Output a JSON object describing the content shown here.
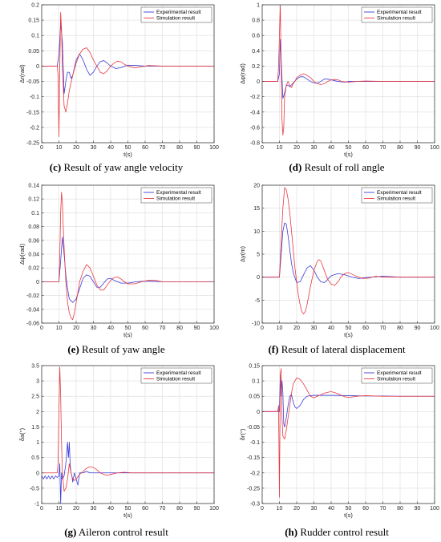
{
  "captions": [
    {
      "letter": "(c)",
      "text": " Result of yaw angle velocity"
    },
    {
      "letter": "(d)",
      "text": " Result of roll angle"
    },
    {
      "letter": "(e)",
      "text": " Result of yaw angle"
    },
    {
      "letter": "(f)",
      "text": " Result of lateral displacement"
    },
    {
      "letter": "(g)",
      "text": " Aileron control result"
    },
    {
      "letter": "(h)",
      "text": " Rudder control result"
    }
  ],
  "colors": {
    "experimental": "#3b3bd9",
    "simulation": "#e8393f",
    "grid": "#dcdcdc",
    "axis": "#262626"
  },
  "chart_data": [
    {
      "type": "line",
      "ylabel": "Δr(rad)",
      "xlabel": "t(s)",
      "xlim": [
        0,
        100
      ],
      "ylim": [
        -0.25,
        0.2
      ],
      "xticks": [
        0,
        10,
        20,
        30,
        40,
        50,
        60,
        70,
        80,
        90,
        100
      ],
      "yticks": [
        -0.25,
        -0.2,
        -0.15,
        -0.1,
        -0.05,
        0,
        0.05,
        0.1,
        0.15,
        0.2
      ],
      "grid": true,
      "legend": "top-right",
      "series": [
        {
          "name": "Experimental result",
          "x": [
            0,
            9,
            10,
            11,
            12,
            13,
            14,
            15,
            16,
            17,
            18,
            20,
            22,
            24,
            26,
            28,
            30,
            32,
            34,
            36,
            38,
            40,
            43,
            46,
            50,
            55,
            60,
            70,
            80,
            100
          ],
          "y": [
            0,
            0,
            0.04,
            0.14,
            0.08,
            -0.09,
            -0.05,
            -0.02,
            -0.02,
            -0.04,
            -0.03,
            0.02,
            0.04,
            0.02,
            -0.01,
            -0.03,
            -0.02,
            0.0,
            0.015,
            0.018,
            0.01,
            0.0,
            -0.008,
            -0.005,
            0.003,
            0.002,
            0.0,
            0.0,
            0.0,
            0.0
          ]
        },
        {
          "name": "Simulation result",
          "x": [
            0,
            9,
            9.5,
            10,
            10.5,
            11,
            11.5,
            12,
            13,
            14,
            15,
            16,
            18,
            20,
            22,
            24,
            26,
            28,
            30,
            32,
            34,
            36,
            38,
            40,
            42,
            44,
            46,
            48,
            50,
            54,
            58,
            62,
            70,
            80,
            100
          ],
          "y": [
            0,
            0,
            -0.03,
            -0.23,
            0.0,
            0.175,
            0.12,
            0.0,
            -0.13,
            -0.15,
            -0.12,
            -0.08,
            -0.03,
            0.01,
            0.04,
            0.055,
            0.06,
            0.045,
            0.02,
            0.0,
            -0.02,
            -0.025,
            -0.015,
            0.0,
            0.01,
            0.016,
            0.014,
            0.006,
            0.0,
            -0.006,
            -0.002,
            0.002,
            0.0,
            0.0,
            0.0
          ]
        }
      ]
    },
    {
      "type": "line",
      "ylabel": "Δφ(rad)",
      "xlabel": "t(s)",
      "xlim": [
        0,
        100
      ],
      "ylim": [
        -0.8,
        1
      ],
      "xticks": [
        0,
        10,
        20,
        30,
        40,
        50,
        60,
        70,
        80,
        90,
        100
      ],
      "yticks": [
        -0.8,
        -0.6,
        -0.4,
        -0.2,
        0,
        0.2,
        0.4,
        0.6,
        0.8,
        1
      ],
      "grid": true,
      "legend": "top-right",
      "series": [
        {
          "name": "Experimental result",
          "x": [
            0,
            9,
            10,
            10.5,
            11,
            12,
            13,
            14,
            15,
            16,
            18,
            20,
            22,
            24,
            26,
            28,
            30,
            32,
            34,
            36,
            38,
            40,
            44,
            48,
            50,
            55,
            60,
            70,
            100
          ],
          "y": [
            0,
            0,
            0.1,
            0.55,
            0.3,
            -0.22,
            -0.15,
            -0.05,
            -0.05,
            -0.07,
            -0.02,
            0.03,
            0.06,
            0.06,
            0.03,
            0.0,
            -0.02,
            -0.02,
            0.0,
            0.03,
            0.03,
            0.02,
            0.0,
            -0.01,
            0.0,
            0.0,
            0.0,
            0.0,
            0.0
          ]
        },
        {
          "name": "Simulation result",
          "x": [
            0,
            9,
            9.5,
            10,
            10.5,
            11,
            11.5,
            12,
            12.5,
            13,
            14,
            15,
            16,
            17,
            18,
            19,
            20,
            22,
            24,
            26,
            28,
            30,
            32,
            34,
            36,
            38,
            40,
            42,
            44,
            46,
            50,
            55,
            60,
            70,
            100
          ],
          "y": [
            0,
            0,
            0.2,
            0.6,
            1.0,
            0.2,
            -0.5,
            -0.7,
            -0.6,
            -0.2,
            -0.05,
            0.0,
            -0.05,
            -0.08,
            -0.03,
            0.0,
            0.05,
            0.08,
            0.1,
            0.08,
            0.05,
            0.0,
            -0.03,
            -0.04,
            -0.03,
            0.0,
            0.02,
            0.025,
            0.02,
            0.0,
            -0.01,
            0.0,
            0.005,
            0.0,
            0.0
          ]
        }
      ]
    },
    {
      "type": "line",
      "ylabel": "Δψ(rad)",
      "xlabel": "t(s)",
      "xlim": [
        0,
        100
      ],
      "ylim": [
        -0.06,
        0.14
      ],
      "xticks": [
        0,
        10,
        20,
        30,
        40,
        50,
        60,
        70,
        80,
        90,
        100
      ],
      "yticks": [
        -0.06,
        -0.04,
        -0.02,
        0,
        0.02,
        0.04,
        0.06,
        0.08,
        0.1,
        0.12,
        0.14
      ],
      "grid": true,
      "legend": "top-right",
      "series": [
        {
          "name": "Experimental result",
          "x": [
            0,
            10,
            11,
            12,
            13,
            14,
            15,
            16,
            18,
            20,
            22,
            24,
            26,
            28,
            30,
            32,
            34,
            36,
            38,
            40,
            42,
            44,
            46,
            50,
            55,
            60,
            70,
            80,
            100
          ],
          "y": [
            0,
            0,
            0.03,
            0.065,
            0.04,
            0.01,
            -0.01,
            -0.025,
            -0.03,
            -0.025,
            -0.01,
            0.005,
            0.01,
            0.008,
            0.0,
            -0.008,
            -0.008,
            -0.002,
            0.004,
            0.005,
            0.002,
            0.0,
            -0.002,
            -0.002,
            0.0,
            0.001,
            0.0,
            0.0,
            0.0
          ]
        },
        {
          "name": "Simulation result",
          "x": [
            0,
            10,
            10.5,
            11,
            11.5,
            12,
            12.5,
            13,
            14,
            15,
            16,
            17,
            18,
            19,
            20,
            22,
            24,
            26,
            28,
            30,
            32,
            34,
            36,
            38,
            40,
            42,
            44,
            46,
            48,
            50,
            54,
            58,
            62,
            66,
            70,
            80,
            100
          ],
          "y": [
            0,
            0,
            0.04,
            0.1,
            0.13,
            0.115,
            0.08,
            0.05,
            0.0,
            -0.03,
            -0.045,
            -0.052,
            -0.055,
            -0.045,
            -0.03,
            0.0,
            0.015,
            0.025,
            0.02,
            0.008,
            -0.005,
            -0.012,
            -0.012,
            -0.005,
            0.002,
            0.006,
            0.007,
            0.004,
            0.0,
            -0.003,
            -0.003,
            0.0,
            0.002,
            0.002,
            0.0,
            0.0,
            0.0
          ]
        }
      ]
    },
    {
      "type": "line",
      "ylabel": "Δy(m)",
      "xlabel": "t(s)",
      "xlim": [
        0,
        100
      ],
      "ylim": [
        -10,
        20
      ],
      "xticks": [
        0,
        10,
        20,
        30,
        40,
        50,
        60,
        70,
        80,
        90,
        100
      ],
      "yticks": [
        -10,
        -5,
        0,
        5,
        10,
        15,
        20
      ],
      "grid": true,
      "legend": "top-right",
      "series": [
        {
          "name": "Experimental result",
          "x": [
            0,
            10,
            11,
            12,
            13,
            14,
            15,
            16,
            17,
            18,
            20,
            22,
            24,
            26,
            28,
            30,
            32,
            34,
            36,
            38,
            40,
            44,
            48,
            52,
            56,
            60,
            70,
            80,
            100
          ],
          "y": [
            0,
            0,
            5,
            10,
            11.8,
            11.5,
            9,
            6,
            3,
            1,
            -1.2,
            -1,
            0.5,
            2,
            2.5,
            1.5,
            0,
            -1,
            -1.2,
            -0.5,
            0.3,
            0.8,
            0.5,
            0,
            -0.3,
            -0.1,
            0.2,
            0,
            0
          ],
          "note": ""
        },
        {
          "name": "Simulation result",
          "x": [
            0,
            10,
            11,
            12,
            13,
            14,
            15,
            16,
            17,
            18,
            19,
            20,
            21,
            22,
            23,
            24,
            25,
            26,
            28,
            30,
            32,
            33,
            34,
            36,
            38,
            40,
            42,
            44,
            46,
            48,
            50,
            54,
            58,
            62,
            66,
            70,
            80,
            100
          ],
          "y": [
            0,
            0,
            8,
            15,
            19.5,
            19,
            17,
            14,
            10,
            6,
            2,
            -1,
            -4,
            -6,
            -7.5,
            -8,
            -7.5,
            -6,
            -2,
            1.5,
            3.5,
            3.8,
            3.5,
            1.5,
            -0.5,
            -1.5,
            -1.8,
            -1,
            0.2,
            0.8,
            1,
            0.3,
            -0.3,
            -0.2,
            0.2,
            0,
            0,
            0
          ]
        }
      ]
    },
    {
      "type": "line",
      "ylabel": "δa(°)",
      "xlabel": "t(s)",
      "xlim": [
        0,
        100
      ],
      "ylim": [
        -1,
        3.5
      ],
      "xticks": [
        0,
        10,
        20,
        30,
        40,
        50,
        60,
        70,
        80,
        90,
        100
      ],
      "yticks": [
        -1,
        -0.5,
        0,
        0.5,
        1,
        1.5,
        2,
        2.5,
        3,
        3.5
      ],
      "grid": true,
      "legend": "top-right",
      "series": [
        {
          "name": "Experimental result",
          "x": [
            0,
            1,
            2,
            3,
            4,
            5,
            6,
            7,
            8,
            9,
            10,
            10.5,
            11,
            11.5,
            12,
            13,
            14,
            15,
            15.5,
            16,
            16.5,
            17,
            17.5,
            18,
            19,
            20,
            21,
            22,
            23,
            24,
            26,
            28,
            30,
            35,
            40,
            50,
            60,
            100
          ],
          "y": [
            -0.1,
            -0.2,
            -0.1,
            -0.2,
            -0.1,
            -0.2,
            -0.1,
            -0.2,
            -0.1,
            -0.15,
            -0.1,
            0.3,
            -1.0,
            0.0,
            -0.2,
            -0.1,
            0.3,
            1.0,
            0.5,
            1.0,
            0.3,
            0.0,
            -0.1,
            -0.3,
            0.0,
            -0.2,
            -0.4,
            0.0,
            0.0,
            0.0,
            0.05,
            0.0,
            0.0,
            0.0,
            0.0,
            0.0,
            0.0,
            0.0
          ]
        },
        {
          "name": "Simulation result",
          "x": [
            0,
            9,
            9.5,
            10,
            10.5,
            11,
            11.5,
            12,
            13,
            14,
            15,
            16,
            17,
            18,
            19,
            20,
            22,
            24,
            26,
            28,
            30,
            32,
            34,
            36,
            38,
            40,
            44,
            48,
            52,
            60,
            70,
            100
          ],
          "y": [
            0,
            0,
            0.3,
            2.0,
            3.45,
            2.5,
            1.0,
            0.0,
            -0.6,
            -0.5,
            -0.2,
            0.3,
            0.0,
            -0.2,
            -0.25,
            -0.2,
            -0.05,
            0.05,
            0.15,
            0.2,
            0.18,
            0.1,
            0.0,
            -0.05,
            -0.08,
            -0.05,
            0.0,
            0.02,
            0.0,
            0.0,
            0.0,
            0.0
          ]
        }
      ]
    },
    {
      "type": "line",
      "ylabel": "δr(°)",
      "xlabel": "t(s)",
      "xlim": [
        0,
        100
      ],
      "ylim": [
        -0.3,
        0.15
      ],
      "xticks": [
        0,
        10,
        20,
        30,
        40,
        50,
        60,
        70,
        80,
        90,
        100
      ],
      "yticks": [
        -0.3,
        -0.25,
        -0.2,
        -0.15,
        -0.1,
        -0.05,
        0,
        0.05,
        0.1,
        0.15
      ],
      "grid": true,
      "legend": "top-right",
      "series": [
        {
          "name": "Experimental result",
          "x": [
            0,
            9,
            10,
            10.5,
            11,
            11.5,
            12,
            12.5,
            13,
            14,
            15,
            16,
            17,
            18,
            19,
            20,
            22,
            24,
            26,
            28,
            30,
            35,
            40,
            50,
            60,
            70,
            80,
            90,
            100
          ],
          "y": [
            0,
            0,
            0.0,
            0.12,
            0.05,
            0.1,
            0.06,
            -0.04,
            -0.05,
            -0.02,
            0.02,
            0.05,
            0.055,
            0.03,
            0.015,
            0.01,
            0.02,
            0.04,
            0.05,
            0.052,
            0.053,
            0.053,
            0.053,
            0.052,
            0.051,
            0.051,
            0.05,
            0.05,
            0.05
          ]
        },
        {
          "name": "Simulation result",
          "x": [
            0,
            9,
            9.5,
            10,
            10.5,
            11,
            11.5,
            12,
            13,
            14,
            15,
            16,
            17,
            18,
            20,
            22,
            24,
            26,
            28,
            30,
            32,
            34,
            36,
            38,
            40,
            42,
            44,
            46,
            48,
            50,
            55,
            60,
            70,
            80,
            100
          ],
          "y": [
            0,
            0,
            0.02,
            -0.28,
            0.12,
            0.14,
            -0.02,
            -0.08,
            -0.09,
            -0.06,
            -0.02,
            0.02,
            0.06,
            0.09,
            0.11,
            0.105,
            0.09,
            0.07,
            0.05,
            0.045,
            0.05,
            0.055,
            0.06,
            0.063,
            0.065,
            0.062,
            0.058,
            0.053,
            0.048,
            0.046,
            0.05,
            0.052,
            0.05,
            0.05,
            0.05
          ]
        }
      ]
    }
  ]
}
